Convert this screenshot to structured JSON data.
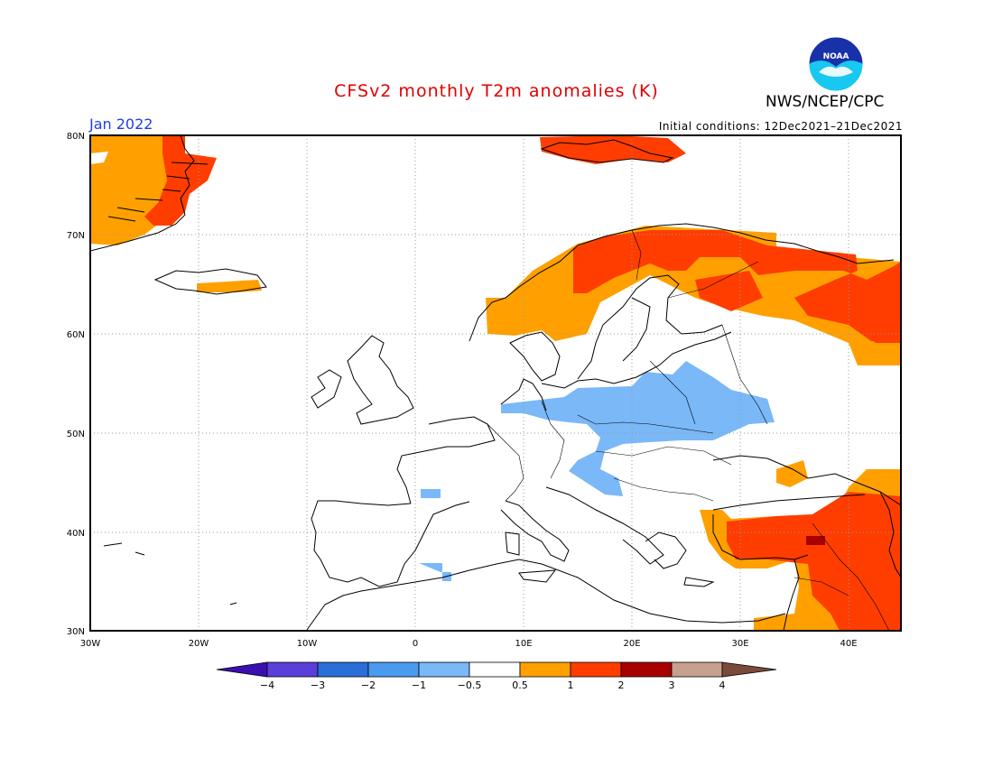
{
  "header": {
    "title": "CFSv2 monthly T2m anomalies (K)",
    "month": "Jan 2022",
    "initial_conditions": "Initial conditions: 12Dec2021–21Dec2021",
    "agency": "NWS/NCEP/CPC",
    "logo_text": "NOAA"
  },
  "map": {
    "region": "Europe",
    "lon_range": [
      -30,
      45
    ],
    "lat_range": [
      30,
      80
    ],
    "lat_ticks": [
      "80N",
      "70N",
      "60N",
      "50N",
      "40N",
      "30N"
    ],
    "lon_ticks": [
      "30W",
      "20W",
      "10W",
      "0",
      "10E",
      "20E",
      "30E",
      "40E"
    ],
    "grid": "dotted",
    "anomaly_regions": [
      {
        "area": "Greenland east coast",
        "category": "0.5 to 2"
      },
      {
        "area": "Svalbard",
        "category": "1 to 2"
      },
      {
        "area": "Iceland south",
        "category": "0.5 to 1"
      },
      {
        "area": "Scandinavia and northwest Russia",
        "category": "0.5 to 2"
      },
      {
        "area": "Central Europe and Ukraine",
        "category": "-1 to -0.5"
      },
      {
        "area": "Turkey, Caucasus and Middle East",
        "category": "0.5 to 3"
      }
    ]
  },
  "colorbar": {
    "labels": [
      "−4",
      "−3",
      "−2",
      "−1",
      "−0.5",
      "0.5",
      "1",
      "2",
      "3",
      "4"
    ],
    "colors": [
      "#3a10b0",
      "#5a40d8",
      "#2a6ed8",
      "#4a9af0",
      "#7ab8f8",
      "#ffffff",
      "#ffa000",
      "#ff3d00",
      "#a80000",
      "#c8a090",
      "#7a4a3a"
    ]
  },
  "anomaly_colors": {
    "neg_half": "#7ab8f8",
    "pos_half": "#ffa000",
    "pos_one": "#ff3d00",
    "pos_two": "#a80000"
  }
}
